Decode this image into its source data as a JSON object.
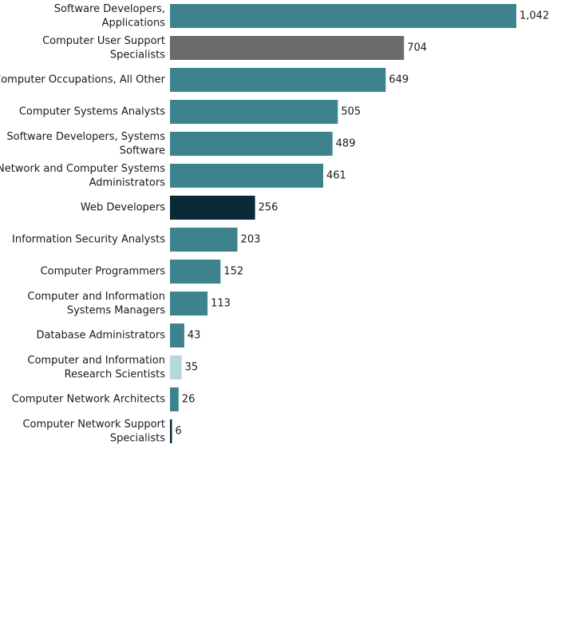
{
  "chart_data": {
    "type": "bar",
    "orientation": "horizontal",
    "categories": [
      [
        "Software Developers,",
        "Applications"
      ],
      [
        "Computer User Support",
        "Specialists"
      ],
      [
        "Computer Occupations, All Other"
      ],
      [
        "Computer Systems Analysts"
      ],
      [
        "Software Developers, Systems",
        "Software"
      ],
      [
        "Network and Computer Systems",
        "Administrators"
      ],
      [
        "Web Developers"
      ],
      [
        "Information Security Analysts"
      ],
      [
        "Computer Programmers"
      ],
      [
        "Computer and Information",
        "Systems Managers"
      ],
      [
        "Database Administrators"
      ],
      [
        "Computer and Information",
        "Research Scientists"
      ],
      [
        "Computer Network Architects"
      ],
      [
        "Computer Network Support",
        "Specialists"
      ]
    ],
    "values": [
      1042,
      704,
      649,
      505,
      489,
      461,
      256,
      203,
      152,
      113,
      43,
      35,
      26,
      6
    ],
    "value_labels": [
      "1,042",
      "704",
      "649",
      "505",
      "489",
      "461",
      "256",
      "203",
      "152",
      "113",
      "43",
      "35",
      "26",
      "6"
    ],
    "bar_colors": [
      "#3e838c",
      "#6b6b6b",
      "#3e838c",
      "#3e838c",
      "#3e838c",
      "#3e838c",
      "#0b2a38",
      "#3e838c",
      "#3e838c",
      "#3e838c",
      "#3e838c",
      "#b6d7de",
      "#3e838c",
      "#0b2a38"
    ],
    "xlim": [
      0,
      1042
    ],
    "grid": false,
    "legend": "none"
  }
}
